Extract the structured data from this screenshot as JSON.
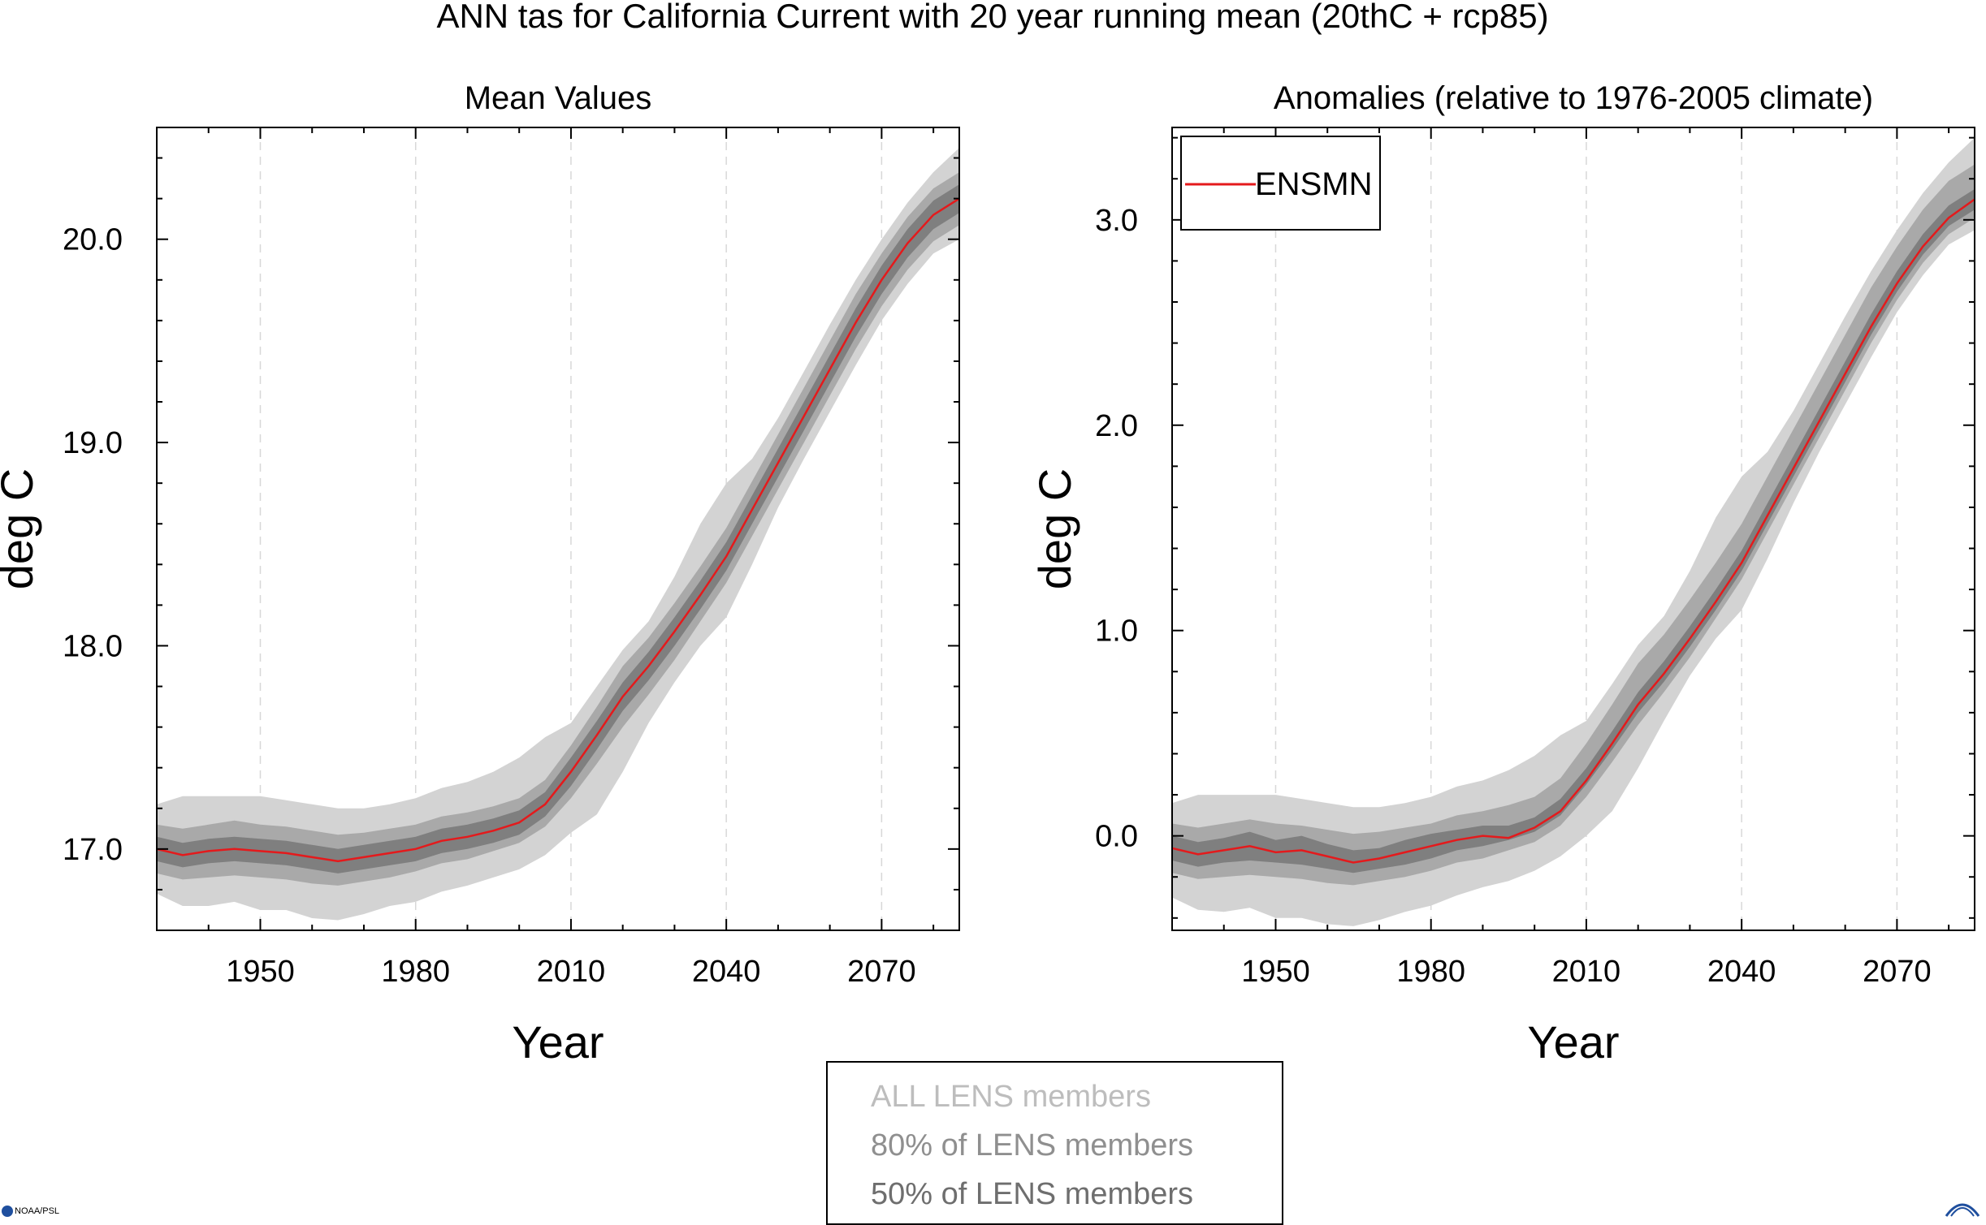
{
  "figure": {
    "title": "ANN tas for California Current with 20 year running mean (20thC + rcp85)",
    "colors": {
      "all_band": "#d3d3d3",
      "p80_band": "#a9a9a9",
      "p50_band": "#7f7f7f",
      "ensmn_line": "#e41a1c",
      "axis": "#000000",
      "grid": "#d8d8d8"
    },
    "band_legend": {
      "entries": [
        {
          "label": "ALL LENS members",
          "color": "#bdbdbd"
        },
        {
          "label": "80% of LENS members",
          "color": "#8f8f8f"
        },
        {
          "label": "50% of LENS members",
          "color": "#6e6e6e"
        }
      ]
    },
    "logos": {
      "noaa": "NOAA/PSL",
      "cires": "CIRES"
    }
  },
  "chart_data": [
    {
      "type": "area",
      "title": "Mean Values",
      "xlabel": "Year",
      "ylabel": "deg C",
      "xlim": [
        1930,
        2085
      ],
      "ylim": [
        16.6,
        20.55
      ],
      "xticks": [
        1950,
        1980,
        2010,
        2040,
        2070
      ],
      "xtick_labels": [
        "1950",
        "1980",
        "2010",
        "2040",
        "2070"
      ],
      "yticks": [
        17.0,
        18.0,
        19.0,
        20.0
      ],
      "ytick_labels": [
        "17.0",
        "18.0",
        "19.0",
        "20.0"
      ],
      "grid": "vertical dashed at x ticks",
      "series": [
        {
          "name": "ENSMN",
          "kind": "line",
          "x": [
            1930,
            1935,
            1940,
            1945,
            1950,
            1955,
            1960,
            1965,
            1970,
            1975,
            1980,
            1985,
            1990,
            1995,
            2000,
            2005,
            2010,
            2015,
            2020,
            2025,
            2030,
            2035,
            2040,
            2045,
            2050,
            2055,
            2060,
            2065,
            2070,
            2075,
            2080,
            2085
          ],
          "y": [
            17.0,
            16.97,
            16.99,
            17.0,
            16.99,
            16.98,
            16.96,
            16.94,
            16.96,
            16.98,
            17.0,
            17.04,
            17.06,
            17.09,
            17.13,
            17.22,
            17.38,
            17.56,
            17.75,
            17.9,
            18.07,
            18.25,
            18.44,
            18.67,
            18.9,
            19.13,
            19.36,
            19.59,
            19.8,
            19.98,
            20.12,
            20.2
          ]
        },
        {
          "name": "ALL LENS members",
          "kind": "band",
          "x": [
            1930,
            1935,
            1940,
            1945,
            1950,
            1955,
            1960,
            1965,
            1970,
            1975,
            1980,
            1985,
            1990,
            1995,
            2000,
            2005,
            2010,
            2015,
            2020,
            2025,
            2030,
            2035,
            2040,
            2045,
            2050,
            2055,
            2060,
            2065,
            2070,
            2075,
            2080,
            2085
          ],
          "lower": [
            16.78,
            16.72,
            16.72,
            16.74,
            16.7,
            16.7,
            16.66,
            16.65,
            16.68,
            16.72,
            16.74,
            16.79,
            16.82,
            16.86,
            16.9,
            16.97,
            17.08,
            17.17,
            17.38,
            17.62,
            17.82,
            18.0,
            18.14,
            18.4,
            18.68,
            18.92,
            19.15,
            19.38,
            19.6,
            19.78,
            19.93,
            20.0
          ],
          "upper": [
            17.22,
            17.26,
            17.26,
            17.26,
            17.26,
            17.24,
            17.22,
            17.2,
            17.2,
            17.22,
            17.25,
            17.3,
            17.33,
            17.38,
            17.45,
            17.55,
            17.62,
            17.8,
            17.98,
            18.12,
            18.34,
            18.6,
            18.8,
            18.92,
            19.12,
            19.35,
            19.58,
            19.8,
            20.0,
            20.18,
            20.33,
            20.45
          ]
        },
        {
          "name": "80% of LENS members",
          "kind": "band",
          "x": [
            1930,
            1935,
            1940,
            1945,
            1950,
            1955,
            1960,
            1965,
            1970,
            1975,
            1980,
            1985,
            1990,
            1995,
            2000,
            2005,
            2010,
            2015,
            2020,
            2025,
            2030,
            2035,
            2040,
            2045,
            2050,
            2055,
            2060,
            2065,
            2070,
            2075,
            2080,
            2085
          ],
          "lower": [
            16.88,
            16.85,
            16.86,
            16.87,
            16.86,
            16.85,
            16.83,
            16.82,
            16.84,
            16.86,
            16.89,
            16.93,
            16.95,
            16.99,
            17.03,
            17.11,
            17.25,
            17.42,
            17.6,
            17.76,
            17.93,
            18.12,
            18.31,
            18.54,
            18.77,
            19.0,
            19.23,
            19.46,
            19.67,
            19.85,
            19.99,
            20.07
          ],
          "upper": [
            17.12,
            17.1,
            17.12,
            17.14,
            17.12,
            17.11,
            17.09,
            17.07,
            17.08,
            17.1,
            17.12,
            17.16,
            17.18,
            17.21,
            17.25,
            17.34,
            17.51,
            17.7,
            17.9,
            18.04,
            18.21,
            18.39,
            18.58,
            18.81,
            19.04,
            19.27,
            19.5,
            19.73,
            19.93,
            20.11,
            20.25,
            20.33
          ]
        },
        {
          "name": "50% of LENS members",
          "kind": "band",
          "x": [
            1930,
            1935,
            1940,
            1945,
            1950,
            1955,
            1960,
            1965,
            1970,
            1975,
            1980,
            1985,
            1990,
            1995,
            2000,
            2005,
            2010,
            2015,
            2020,
            2025,
            2030,
            2035,
            2040,
            2045,
            2050,
            2055,
            2060,
            2065,
            2070,
            2075,
            2080,
            2085
          ],
          "lower": [
            16.94,
            16.91,
            16.93,
            16.94,
            16.93,
            16.92,
            16.9,
            16.88,
            16.9,
            16.92,
            16.94,
            16.98,
            17.0,
            17.03,
            17.07,
            17.16,
            17.31,
            17.49,
            17.68,
            17.83,
            18.0,
            18.18,
            18.37,
            18.6,
            18.83,
            19.06,
            19.29,
            19.52,
            19.73,
            19.91,
            20.05,
            20.13
          ]
        },
        {
          "name": "",
          "kind": "band-upper-placeholder"
        }
      ]
    },
    {
      "type": "area",
      "title": "Anomalies (relative to 1976-2005 climate)",
      "xlabel": "Year",
      "ylabel": "deg C",
      "xlim": [
        1930,
        2085
      ],
      "ylim": [
        -0.46,
        3.45
      ],
      "xticks": [
        1950,
        1980,
        2010,
        2040,
        2070
      ],
      "xtick_labels": [
        "1950",
        "1980",
        "2010",
        "2040",
        "2070"
      ],
      "yticks": [
        0.0,
        1.0,
        2.0,
        3.0
      ],
      "ytick_labels": [
        "0.0",
        "1.0",
        "2.0",
        "3.0"
      ],
      "grid": "vertical dashed at x ticks",
      "legend": {
        "position": "top-left",
        "entries": [
          {
            "name": "ENSMN",
            "color": "#e41a1c"
          }
        ]
      },
      "series": [
        {
          "name": "ENSMN",
          "kind": "line",
          "x": [
            1930,
            1935,
            1940,
            1945,
            1950,
            1955,
            1960,
            1965,
            1970,
            1975,
            1980,
            1985,
            1990,
            1995,
            2000,
            2005,
            2010,
            2015,
            2020,
            2025,
            2030,
            2035,
            2040,
            2045,
            2050,
            2055,
            2060,
            2065,
            2070,
            2075,
            2080,
            2085
          ],
          "y": [
            -0.06,
            -0.09,
            -0.07,
            -0.05,
            -0.08,
            -0.07,
            -0.1,
            -0.13,
            -0.11,
            -0.08,
            -0.05,
            -0.02,
            0.0,
            -0.01,
            0.04,
            0.12,
            0.27,
            0.45,
            0.64,
            0.79,
            0.96,
            1.14,
            1.33,
            1.56,
            1.79,
            2.02,
            2.25,
            2.48,
            2.69,
            2.87,
            3.01,
            3.1
          ]
        },
        {
          "name": "ALL LENS members",
          "kind": "band",
          "x": [
            1930,
            1935,
            1940,
            1945,
            1950,
            1955,
            1960,
            1965,
            1970,
            1975,
            1980,
            1985,
            1990,
            1995,
            2000,
            2005,
            2010,
            2015,
            2020,
            2025,
            2030,
            2035,
            2040,
            2045,
            2050,
            2055,
            2060,
            2065,
            2070,
            2075,
            2080,
            2085
          ],
          "lower": [
            -0.3,
            -0.36,
            -0.37,
            -0.35,
            -0.4,
            -0.4,
            -0.43,
            -0.44,
            -0.41,
            -0.37,
            -0.34,
            -0.29,
            -0.25,
            -0.22,
            -0.17,
            -0.1,
            0.0,
            0.12,
            0.33,
            0.56,
            0.78,
            0.96,
            1.1,
            1.35,
            1.62,
            1.87,
            2.1,
            2.33,
            2.55,
            2.73,
            2.88,
            2.95
          ],
          "upper": [
            0.16,
            0.2,
            0.2,
            0.2,
            0.2,
            0.18,
            0.16,
            0.14,
            0.14,
            0.16,
            0.19,
            0.24,
            0.27,
            0.32,
            0.39,
            0.49,
            0.56,
            0.74,
            0.93,
            1.07,
            1.29,
            1.55,
            1.75,
            1.87,
            2.07,
            2.3,
            2.53,
            2.75,
            2.95,
            3.13,
            3.28,
            3.4
          ]
        },
        {
          "name": "80% of LENS members",
          "kind": "band",
          "x": [
            1930,
            1935,
            1940,
            1945,
            1950,
            1955,
            1960,
            1965,
            1970,
            1975,
            1980,
            1985,
            1990,
            1995,
            2000,
            2005,
            2010,
            2015,
            2020,
            2025,
            2030,
            2035,
            2040,
            2045,
            2050,
            2055,
            2060,
            2065,
            2070,
            2075,
            2080,
            2085
          ],
          "lower": [
            -0.18,
            -0.21,
            -0.2,
            -0.19,
            -0.2,
            -0.21,
            -0.23,
            -0.24,
            -0.22,
            -0.2,
            -0.17,
            -0.13,
            -0.11,
            -0.07,
            -0.03,
            0.05,
            0.19,
            0.36,
            0.54,
            0.7,
            0.87,
            1.06,
            1.25,
            1.48,
            1.71,
            1.94,
            2.17,
            2.4,
            2.61,
            2.79,
            2.93,
            3.01
          ],
          "upper": [
            0.06,
            0.04,
            0.06,
            0.08,
            0.06,
            0.05,
            0.03,
            0.01,
            0.02,
            0.04,
            0.06,
            0.1,
            0.12,
            0.15,
            0.19,
            0.28,
            0.45,
            0.64,
            0.84,
            0.98,
            1.15,
            1.33,
            1.52,
            1.75,
            1.98,
            2.21,
            2.44,
            2.67,
            2.87,
            3.05,
            3.19,
            3.27
          ]
        },
        {
          "name": "50% of LENS members",
          "kind": "band",
          "x": [
            1930,
            1935,
            1940,
            1945,
            1950,
            1955,
            1960,
            1965,
            1970,
            1975,
            1980,
            1985,
            1990,
            1995,
            2000,
            2005,
            2010,
            2015,
            2020,
            2025,
            2030,
            2035,
            2040,
            2045,
            2050,
            2055,
            2060,
            2065,
            2070,
            2075,
            2080,
            2085
          ],
          "lower": [
            -0.12,
            -0.15,
            -0.13,
            -0.12,
            -0.13,
            -0.14,
            -0.16,
            -0.18,
            -0.16,
            -0.14,
            -0.11,
            -0.07,
            -0.05,
            -0.02,
            0.02,
            0.1,
            0.25,
            0.42,
            0.6,
            0.75,
            0.92,
            1.1,
            1.29,
            1.52,
            1.75,
            1.98,
            2.21,
            2.44,
            2.65,
            2.83,
            2.97,
            3.05
          ],
          "upper": [
            0.0,
            -0.03,
            -0.01,
            0.02,
            -0.02,
            0.0,
            -0.04,
            -0.07,
            -0.06,
            -0.02,
            0.01,
            0.03,
            0.05,
            0.05,
            0.09,
            0.18,
            0.33,
            0.51,
            0.7,
            0.85,
            1.02,
            1.2,
            1.39,
            1.62,
            1.85,
            2.08,
            2.31,
            2.54,
            2.75,
            2.93,
            3.07,
            3.15
          ]
        }
      ]
    }
  ]
}
